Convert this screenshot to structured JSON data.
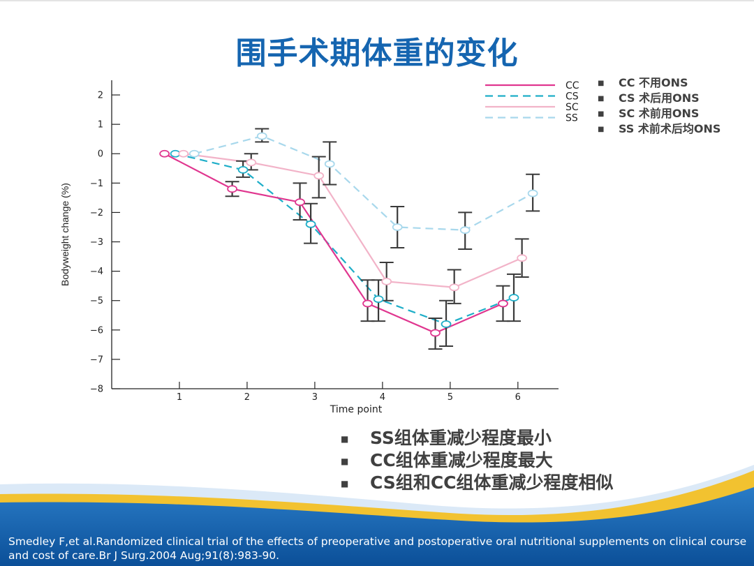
{
  "slide": {
    "title": "围手术期体重的变化",
    "legend_notes": [
      "CC  不用ONS",
      "CS  术后用ONS",
      "SC  术前用ONS",
      "SS  术前术后均ONS"
    ],
    "findings": [
      "SS组体重减少程度最小",
      "CC组体重减少程度最大",
      "CS组和CC组体重减少程度相似"
    ],
    "citation": "Smedley F,et al.Randomized clinical trial of the effects of preoperative and postoperative oral nutritional supplements on clinical course and cost of care.Br J Surg.2004 Aug;91(8):983-90.",
    "colors": {
      "title": "#1565b0",
      "footer_blue": "#0d5aa7",
      "footer_yellow": "#f2c230"
    }
  },
  "chart_data": {
    "type": "line",
    "xlabel": "Time point",
    "ylabel": "Bodyweight change (%)",
    "categories": [
      1,
      2,
      3,
      4,
      5,
      6
    ],
    "xlim": [
      0.0,
      6.6
    ],
    "ylim": [
      -8,
      2.5
    ],
    "yticks": [
      2,
      1,
      0,
      -1,
      -2,
      -3,
      -4,
      -5,
      -6,
      -7,
      -8
    ],
    "ytick_labels": [
      "2",
      "1",
      "0",
      "−1",
      "−2",
      "−3",
      "−4",
      "−5",
      "−6",
      "−7",
      "−8"
    ],
    "legend_position": "top-right",
    "series": [
      {
        "name": "CC",
        "color": "#e0368f",
        "style": "solid",
        "x": [
          0.78,
          1.78,
          2.78,
          3.78,
          4.78,
          5.78
        ],
        "values": [
          0.0,
          -1.2,
          -1.65,
          -5.1,
          -6.1,
          -5.1
        ],
        "err_lo": [
          null,
          -1.45,
          -2.25,
          -5.7,
          -6.65,
          -5.7
        ],
        "err_hi": [
          null,
          -0.95,
          -1.0,
          -4.3,
          -5.6,
          -4.5
        ]
      },
      {
        "name": "CS",
        "color": "#1eaec8",
        "style": "dashed",
        "x": [
          0.94,
          1.94,
          2.94,
          3.94,
          4.94,
          5.94
        ],
        "values": [
          0.0,
          -0.55,
          -2.4,
          -4.95,
          -5.8,
          -4.9
        ],
        "err_lo": [
          null,
          -0.8,
          -3.05,
          -5.7,
          -6.55,
          -5.7
        ],
        "err_hi": [
          null,
          -0.25,
          -1.7,
          -4.3,
          -5.0,
          -4.1
        ]
      },
      {
        "name": "SC",
        "color": "#f2b3c8",
        "style": "solid",
        "x": [
          1.06,
          2.06,
          3.06,
          4.06,
          5.06,
          6.06
        ],
        "values": [
          0.0,
          -0.3,
          -0.75,
          -4.35,
          -4.55,
          -3.55
        ],
        "err_lo": [
          null,
          -0.55,
          -1.5,
          -5.0,
          -5.1,
          -4.2
        ],
        "err_hi": [
          null,
          0.0,
          -0.1,
          -3.7,
          -3.95,
          -2.9
        ]
      },
      {
        "name": "SS",
        "color": "#a8d8ec",
        "style": "dashed",
        "x": [
          1.22,
          2.22,
          3.22,
          4.22,
          5.22,
          6.22
        ],
        "values": [
          0.0,
          0.6,
          -0.35,
          -2.5,
          -2.6,
          -1.35
        ],
        "err_lo": [
          null,
          0.4,
          -1.05,
          -3.2,
          -3.25,
          -1.95
        ],
        "err_hi": [
          null,
          0.85,
          0.4,
          -1.8,
          -2.0,
          -0.7
        ]
      }
    ]
  }
}
